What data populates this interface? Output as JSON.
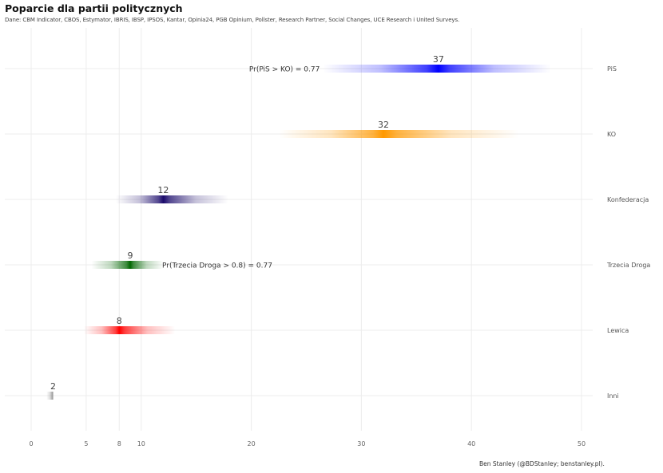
{
  "chart_data": {
    "type": "interval",
    "title": "Poparcie dla partii politycznych",
    "subtitle": "Dane: CBM Indicator, CBOS, Estymator, IBRIS, IBSP, IPSOS, Kantar, Opinia24, PGB Opinium, Pollster, Research Partner, Social Changes, UCE Research i United Surveys.",
    "caption": "Ben Stanley (@BDStanley; benstanley.pl).",
    "xlabel": "",
    "ylabel": "",
    "xlim": [
      0,
      50
    ],
    "x_ticks": [
      0,
      5,
      8,
      10,
      20,
      30,
      40,
      50
    ],
    "grid": true,
    "y_axis_position": "right",
    "series": [
      {
        "name": "PiS",
        "value": 37,
        "low": 26.5,
        "high": 47.2,
        "color": "#0000ff"
      },
      {
        "name": "KO",
        "value": 32,
        "low": 22.5,
        "high": 44.3,
        "color": "#ff9900"
      },
      {
        "name": "Konfederacja",
        "value": 12,
        "low": 7.7,
        "high": 17.9,
        "color": "#1a0a6b"
      },
      {
        "name": "Trzecia Droga",
        "value": 9,
        "low": 5.5,
        "high": 12.0,
        "color": "#006600"
      },
      {
        "name": "Lewica",
        "value": 8,
        "low": 4.8,
        "high": 13.1,
        "color": "#ff0000"
      },
      {
        "name": "Inni",
        "value": 2,
        "low": 1.4,
        "high": 2.0,
        "color": "#808080"
      }
    ],
    "annotations": [
      {
        "text": "Pr(PiS > KO)  =  0.77",
        "row": "PiS",
        "x": 19.8,
        "anchor": "start"
      },
      {
        "text": "Pr(Trzecia Droga > 0.8)  =  0.77",
        "row": "Trzecia Droga",
        "x": 11.9,
        "anchor": "start"
      }
    ]
  }
}
